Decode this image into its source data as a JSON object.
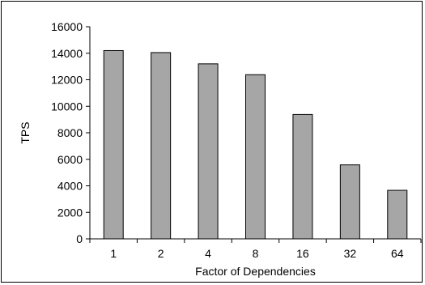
{
  "chart_data": {
    "type": "bar",
    "title": "",
    "xlabel": "Factor of Dependencies",
    "ylabel": "TPS",
    "categories": [
      "1",
      "2",
      "4",
      "8",
      "16",
      "32",
      "64"
    ],
    "values": [
      14200,
      14050,
      13200,
      12380,
      9380,
      5580,
      3660
    ],
    "ylim": [
      0,
      16000
    ],
    "yticks": [
      0,
      2000,
      4000,
      6000,
      8000,
      10000,
      12000,
      14000,
      16000
    ],
    "grid": false,
    "legend": "none",
    "bar_color": "#a6a6a6",
    "bar_outline": "#000000"
  }
}
